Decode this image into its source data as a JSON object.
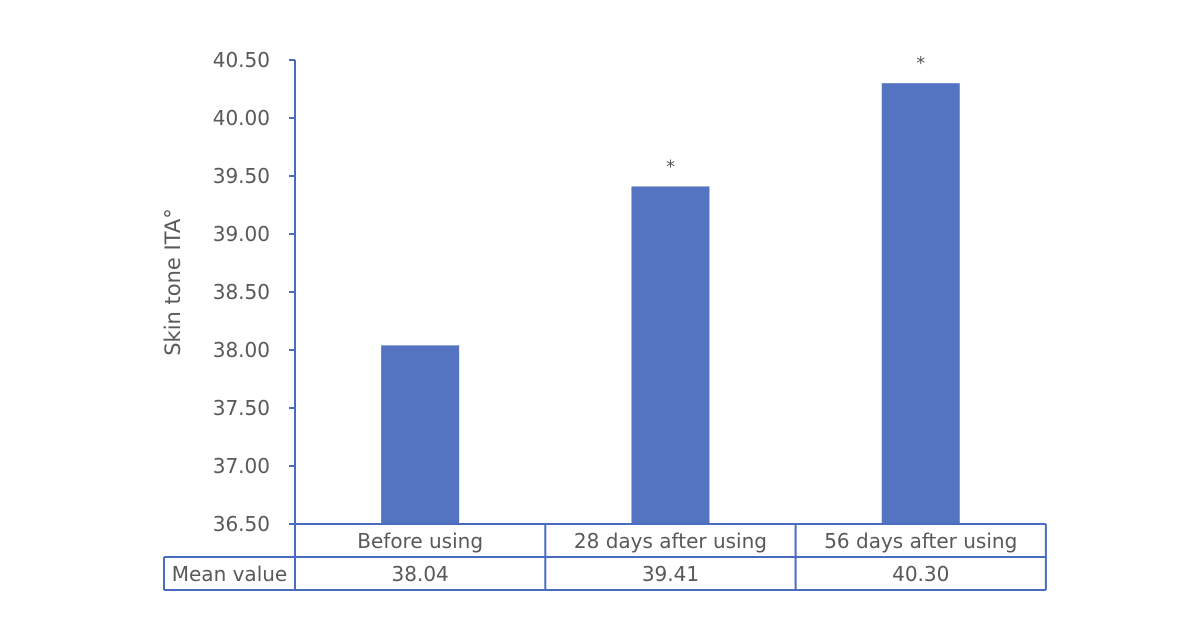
{
  "chart_data": {
    "type": "bar",
    "title": "",
    "xlabel": "",
    "ylabel": "Skin tone ITA°",
    "ylim": [
      36.5,
      40.5
    ],
    "yticks": [
      "36.50",
      "37.00",
      "37.50",
      "38.00",
      "38.50",
      "39.00",
      "39.50",
      "40.00",
      "40.50"
    ],
    "categories": [
      "Before using",
      "28 days after using",
      "56 days after using"
    ],
    "values": [
      38.04,
      39.41,
      40.3
    ],
    "annotations": [
      "",
      "*",
      "*"
    ],
    "grid": false,
    "legend": "none",
    "data_table": {
      "row_label": "Mean value",
      "cells": [
        "38.04",
        "39.41",
        "40.30"
      ]
    },
    "colors": {
      "bar": "#5473C1",
      "axis": "#4A6CC0",
      "text": "#595959"
    }
  }
}
